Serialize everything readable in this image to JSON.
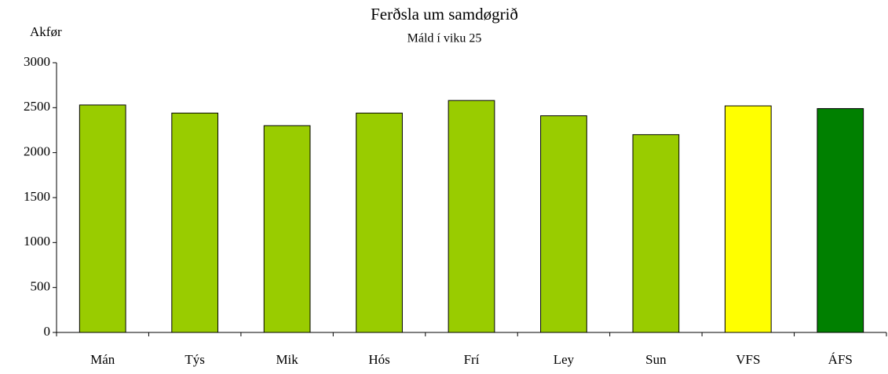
{
  "chart_data": {
    "type": "bar",
    "title": "Ferðsla um samdøgrið",
    "subtitle": "Máld í viku 25",
    "y_label": "Akfør",
    "categories": [
      "Mán",
      "Týs",
      "Mik",
      "Hós",
      "Frí",
      "Ley",
      "Sun",
      "VFS",
      "ÁFS"
    ],
    "values": [
      2530,
      2440,
      2300,
      2440,
      2580,
      2410,
      2200,
      2520,
      2490
    ],
    "colors": [
      "#99cc00",
      "#99cc00",
      "#99cc00",
      "#99cc00",
      "#99cc00",
      "#99cc00",
      "#99cc00",
      "#ffff00",
      "#008000"
    ],
    "ylim": [
      0,
      3000
    ],
    "yticks": [
      0,
      500,
      1000,
      1500,
      2000,
      2500,
      3000
    ],
    "grid": false
  }
}
